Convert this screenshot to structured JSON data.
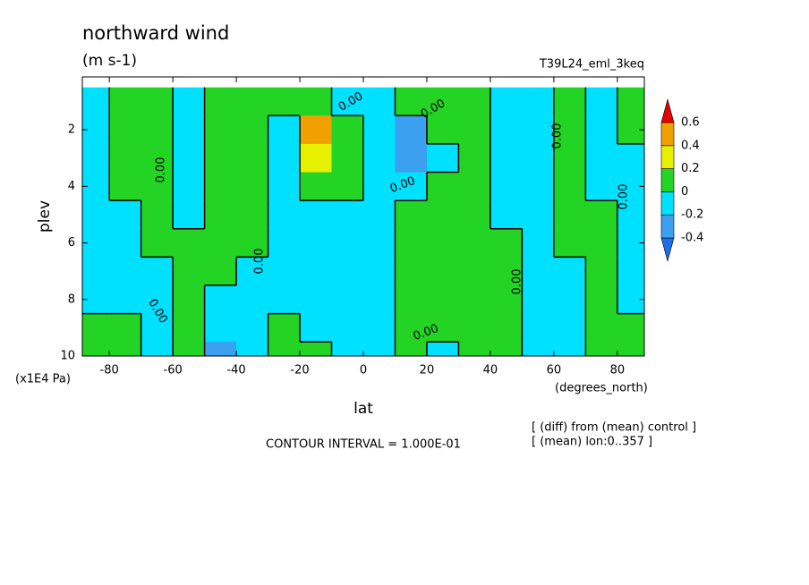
{
  "chart_data": {
    "type": "contour",
    "title": "northward wind",
    "subtitle": "(m s-1)",
    "run_label": "T39L24_eml_3keq",
    "xlabel": "lat",
    "ylabel": "plev",
    "xunit": "(degrees_north)",
    "yunit": "(x1E4 Pa)",
    "contour_interval": "CONTOUR INTERVAL = 1.000E-01",
    "notes": [
      "[ (diff) from (mean) control ]",
      "[ (mean) lon:0..357 ]"
    ],
    "contour_label": "0.00",
    "xlim": [
      -88.5,
      88.5
    ],
    "ylim": [
      10,
      0.13
    ],
    "xticks": [
      -80,
      -60,
      -40,
      -20,
      0,
      20,
      40,
      60,
      80
    ],
    "yticks": [
      2,
      4,
      6,
      8,
      10
    ],
    "x": [
      -85,
      -75,
      -65,
      -55,
      -45,
      -35,
      -25,
      -15,
      -5,
      5,
      15,
      25,
      35,
      45,
      55,
      65,
      75,
      85
    ],
    "y": [
      1,
      2,
      3,
      4,
      5,
      6,
      7,
      8,
      9,
      10
    ],
    "z": [
      [
        -0.1,
        0.1,
        0.1,
        -0.1,
        0.1,
        0.1,
        0.1,
        0.1,
        -0.1,
        -0.1,
        0.1,
        0.1,
        0.1,
        -0.1,
        -0.1,
        0.1,
        -0.1,
        0.1
      ],
      [
        -0.1,
        0.1,
        0.1,
        -0.1,
        0.1,
        0.1,
        -0.1,
        0.45,
        0.1,
        -0.1,
        -0.3,
        0.1,
        0.1,
        -0.1,
        -0.1,
        0.1,
        -0.1,
        0.1
      ],
      [
        -0.1,
        0.1,
        0.1,
        -0.1,
        0.1,
        0.1,
        -0.1,
        0.3,
        0.1,
        -0.1,
        -0.3,
        -0.1,
        0.1,
        -0.1,
        -0.1,
        0.1,
        -0.1,
        -0.1
      ],
      [
        -0.1,
        0.1,
        0.1,
        -0.1,
        0.1,
        0.1,
        -0.1,
        0.1,
        0.1,
        -0.1,
        -0.1,
        0.1,
        0.1,
        -0.1,
        -0.1,
        0.1,
        -0.1,
        -0.1
      ],
      [
        -0.1,
        -0.1,
        0.1,
        -0.1,
        0.1,
        0.1,
        -0.1,
        -0.1,
        -0.1,
        -0.1,
        0.1,
        0.1,
        0.1,
        -0.1,
        -0.1,
        0.1,
        0.1,
        -0.1
      ],
      [
        -0.1,
        -0.1,
        0.1,
        0.1,
        0.1,
        0.1,
        -0.1,
        -0.1,
        -0.1,
        -0.1,
        0.1,
        0.1,
        0.1,
        0.1,
        -0.1,
        0.1,
        0.1,
        -0.1
      ],
      [
        -0.1,
        -0.1,
        -0.1,
        0.1,
        0.1,
        -0.1,
        -0.1,
        -0.1,
        -0.1,
        -0.1,
        0.1,
        0.1,
        0.1,
        0.1,
        -0.1,
        -0.1,
        0.1,
        -0.1
      ],
      [
        -0.1,
        -0.1,
        -0.1,
        0.1,
        -0.1,
        -0.1,
        -0.1,
        -0.1,
        -0.1,
        -0.1,
        0.1,
        0.1,
        0.1,
        0.1,
        -0.1,
        -0.1,
        0.1,
        -0.1
      ],
      [
        0.1,
        0.1,
        -0.1,
        0.1,
        -0.1,
        -0.1,
        0.1,
        -0.1,
        -0.1,
        -0.1,
        0.1,
        0.1,
        0.1,
        0.1,
        -0.1,
        -0.1,
        0.1,
        0.1
      ],
      [
        0.1,
        0.1,
        -0.1,
        0.1,
        -0.3,
        -0.1,
        0.1,
        0.1,
        -0.1,
        -0.1,
        0.1,
        -0.1,
        0.1,
        0.1,
        -0.1,
        -0.1,
        0.1,
        0.1
      ]
    ],
    "levels": [
      -0.4,
      -0.2,
      0,
      0.2,
      0.4,
      0.6
    ],
    "colors": [
      "#1e6eeb",
      "#3ca0f0",
      "#00e0ff",
      "#24d424",
      "#e6f000",
      "#f0a000",
      "#e60000"
    ]
  }
}
